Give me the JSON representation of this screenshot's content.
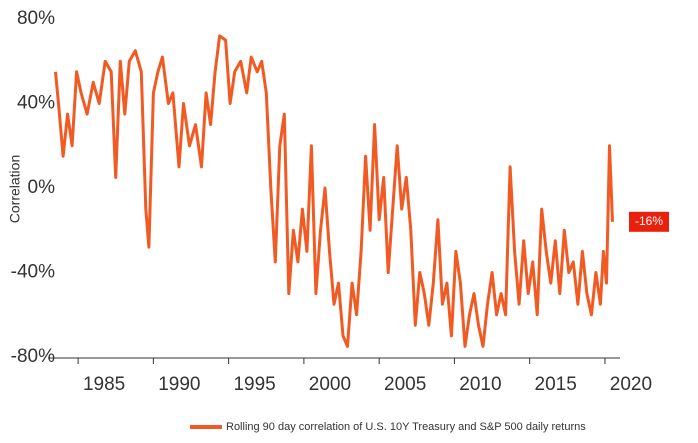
{
  "chart_data": {
    "type": "line",
    "ylabel": "Correlation",
    "x": [
      1983.5,
      1983.7,
      1984,
      1984.3,
      1984.6,
      1984.9,
      1985.2,
      1985.6,
      1986,
      1986.4,
      1986.8,
      1987.2,
      1987.5,
      1987.8,
      1988.1,
      1988.4,
      1988.8,
      1989.2,
      1989.5,
      1989.7,
      1990,
      1990.3,
      1990.6,
      1991,
      1991.3,
      1991.7,
      1992,
      1992.4,
      1992.8,
      1993.2,
      1993.5,
      1993.8,
      1994.1,
      1994.4,
      1994.8,
      1995.1,
      1995.4,
      1995.8,
      1996.2,
      1996.5,
      1996.9,
      1997.2,
      1997.5,
      1997.8,
      1998.1,
      1998.4,
      1998.7,
      1999,
      1999.3,
      1999.6,
      1999.9,
      2000.2,
      2000.5,
      2000.8,
      2001.1,
      2001.4,
      2001.7,
      2002,
      2002.3,
      2002.6,
      2002.9,
      2003.2,
      2003.5,
      2003.8,
      2004.1,
      2004.4,
      2004.7,
      2005,
      2005.3,
      2005.6,
      2005.9,
      2006.2,
      2006.5,
      2006.8,
      2007.1,
      2007.4,
      2007.7,
      2008,
      2008.3,
      2008.6,
      2008.9,
      2009.2,
      2009.5,
      2009.8,
      2010.1,
      2010.4,
      2010.7,
      2011,
      2011.3,
      2011.6,
      2011.9,
      2012.2,
      2012.5,
      2012.8,
      2013.1,
      2013.4,
      2013.7,
      2014,
      2014.3,
      2014.6,
      2014.9,
      2015.2,
      2015.5,
      2015.8,
      2016.1,
      2016.4,
      2016.7,
      2017,
      2017.3,
      2017.6,
      2017.9,
      2018.2,
      2018.5,
      2018.8,
      2019.1,
      2019.4,
      2019.7,
      2019.9,
      2020.1,
      2020.3,
      2020.5
    ],
    "series": [
      {
        "name": "Rolling 90 day correlation of U.S. 10Y Treasury and S&P 500 daily returns",
        "color": "#f15a22",
        "values": [
          55,
          40,
          15,
          35,
          20,
          55,
          45,
          35,
          50,
          40,
          60,
          55,
          5,
          60,
          35,
          60,
          65,
          55,
          -10,
          -28,
          45,
          55,
          62,
          40,
          45,
          10,
          40,
          20,
          30,
          10,
          45,
          30,
          55,
          72,
          70,
          40,
          55,
          60,
          45,
          62,
          55,
          60,
          45,
          0,
          -35,
          20,
          35,
          -50,
          -20,
          -35,
          -10,
          -30,
          20,
          -50,
          -20,
          0,
          -30,
          -55,
          -45,
          -70,
          -75,
          -45,
          -60,
          -30,
          15,
          -20,
          30,
          -15,
          5,
          -40,
          -10,
          20,
          -10,
          5,
          -20,
          -65,
          -40,
          -50,
          -65,
          -45,
          -15,
          -55,
          -45,
          -70,
          -30,
          -45,
          -75,
          -60,
          -50,
          -65,
          -75,
          -55,
          -40,
          -60,
          -50,
          -60,
          10,
          -30,
          -55,
          -25,
          -50,
          -35,
          -60,
          -10,
          -30,
          -45,
          -25,
          -50,
          -20,
          -40,
          -35,
          -55,
          -30,
          -50,
          -60,
          -40,
          -55,
          -30,
          -45,
          20,
          -16
        ]
      }
    ],
    "annotation": {
      "value": -16,
      "label": "-16%"
    },
    "xlim": [
      1983,
      2021
    ],
    "xticks": [
      1985,
      1990,
      1995,
      2000,
      2005,
      2010,
      2015,
      2020
    ],
    "ylim": [
      -80,
      80
    ],
    "yticks": [
      {
        "value": -80,
        "label": "-80%"
      },
      {
        "value": -40,
        "label": "-40%"
      },
      {
        "value": 0,
        "label": "0%"
      },
      {
        "value": 40,
        "label": "40%"
      },
      {
        "value": 80,
        "label": "80%"
      }
    ]
  }
}
